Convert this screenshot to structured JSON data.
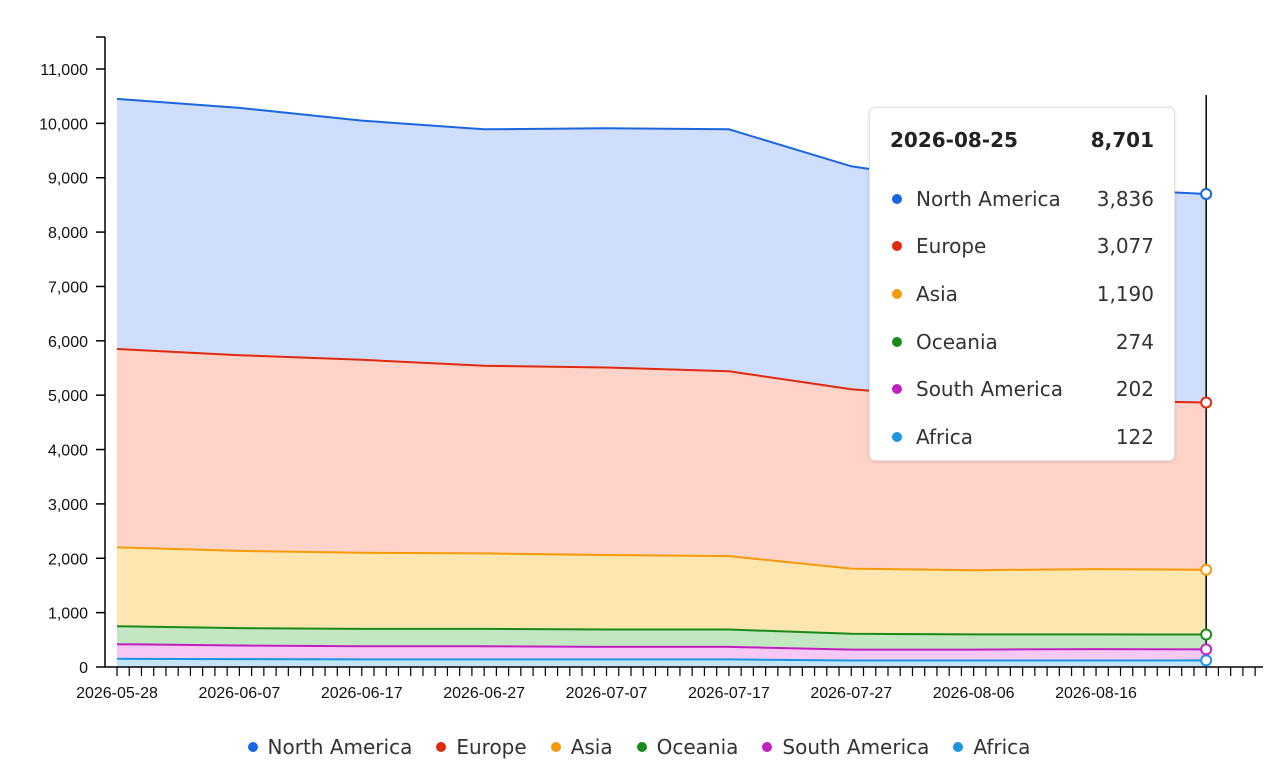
{
  "chart_data": {
    "type": "area",
    "stacked": true,
    "x": [
      "2026-05-28",
      "2026-06-07",
      "2026-06-17",
      "2026-06-27",
      "2026-07-07",
      "2026-07-17",
      "2026-07-27",
      "2026-08-06",
      "2026-08-16",
      "2026-08-25"
    ],
    "x_tick_labels": [
      "2026-05-28",
      "2026-06-07",
      "2026-06-17",
      "2026-06-27",
      "2026-07-07",
      "2026-07-17",
      "2026-07-27",
      "2026-08-06",
      "2026-08-16"
    ],
    "x_range": [
      "2026-05-28",
      "2026-09-01"
    ],
    "ylim": [
      0,
      11000
    ],
    "y_ticks": [
      "0",
      "1,000",
      "2,000",
      "3,000",
      "4,000",
      "5,000",
      "6,000",
      "7,000",
      "8,000",
      "9,000",
      "10,000",
      "11,000"
    ],
    "series": [
      {
        "name": "North America",
        "color": "#1a66e0",
        "fill": "#cfdefc",
        "values": [
          4600,
          4550,
          4400,
          4350,
          4400,
          4450,
          4100,
          3950,
          3900,
          3836
        ]
      },
      {
        "name": "Europe",
        "color": "#e02a10",
        "fill": "#ffd3c8",
        "values": [
          3650,
          3600,
          3550,
          3450,
          3450,
          3400,
          3300,
          3150,
          3100,
          3077
        ]
      },
      {
        "name": "Asia",
        "color": "#f59a0a",
        "fill": "#fde6b0",
        "values": [
          1450,
          1420,
          1400,
          1390,
          1370,
          1350,
          1200,
          1180,
          1200,
          1190
        ]
      },
      {
        "name": "Oceania",
        "color": "#1a8a1a",
        "fill": "#c3e6c3",
        "values": [
          330,
          320,
          320,
          320,
          320,
          320,
          290,
          280,
          270,
          274
        ]
      },
      {
        "name": "South America",
        "color": "#c020c0",
        "fill": "#f6c8f6",
        "values": [
          270,
          250,
          240,
          240,
          230,
          230,
          200,
          200,
          210,
          202
        ]
      },
      {
        "name": "Africa",
        "color": "#1a96e0",
        "fill": "#c4e4f8",
        "values": [
          150,
          145,
          140,
          140,
          140,
          140,
          120,
          120,
          120,
          122
        ]
      }
    ],
    "legend_position": "bottom",
    "grid": false
  },
  "tooltip": {
    "date": "2026-08-25",
    "total": "8,701",
    "rows": [
      {
        "name": "North America",
        "value": "3,836",
        "color": "#1a66e0"
      },
      {
        "name": "Europe",
        "value": "3,077",
        "color": "#e02a10"
      },
      {
        "name": "Asia",
        "value": "1,190",
        "color": "#f59a0a"
      },
      {
        "name": "Oceania",
        "value": "274",
        "color": "#1a8a1a"
      },
      {
        "name": "South America",
        "value": "202",
        "color": "#c020c0"
      },
      {
        "name": "Africa",
        "value": "122",
        "color": "#1a96e0"
      }
    ]
  }
}
